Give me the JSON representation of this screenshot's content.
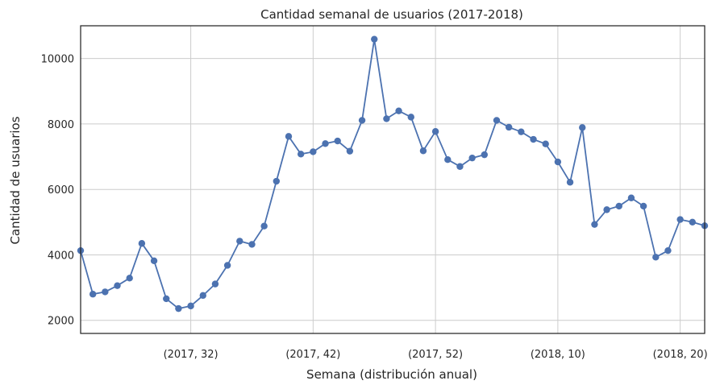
{
  "chart_data": {
    "type": "line",
    "title": "Cantidad semanal de usuarios (2017-2018)",
    "xlabel": "Semana (distribución anual)",
    "ylabel": "Cantidad de usuarios",
    "x_tick_labels": [
      "(2017, 32)",
      "(2017, 42)",
      "(2017, 52)",
      "(2018, 10)",
      "(2018, 20)"
    ],
    "y_ticks": [
      2000,
      4000,
      6000,
      8000,
      10000
    ],
    "ylim": [
      1600,
      11000
    ],
    "grid": true,
    "color": "#4c72b0",
    "x": [
      "(2017, 23)",
      "(2017, 24)",
      "(2017, 25)",
      "(2017, 26)",
      "(2017, 27)",
      "(2017, 28)",
      "(2017, 29)",
      "(2017, 30)",
      "(2017, 31)",
      "(2017, 32)",
      "(2017, 33)",
      "(2017, 34)",
      "(2017, 35)",
      "(2017, 36)",
      "(2017, 37)",
      "(2017, 38)",
      "(2017, 39)",
      "(2017, 40)",
      "(2017, 41)",
      "(2017, 42)",
      "(2017, 43)",
      "(2017, 44)",
      "(2017, 45)",
      "(2017, 46)",
      "(2017, 47)",
      "(2017, 48)",
      "(2017, 49)",
      "(2017, 50)",
      "(2017, 51)",
      "(2017, 52)",
      "(2018, 1)",
      "(2018, 2)",
      "(2018, 3)",
      "(2018, 4)",
      "(2018, 5)",
      "(2018, 6)",
      "(2018, 7)",
      "(2018, 8)",
      "(2018, 9)",
      "(2018, 10)",
      "(2018, 11)",
      "(2018, 12)",
      "(2018, 13)",
      "(2018, 14)",
      "(2018, 15)",
      "(2018, 16)",
      "(2018, 17)",
      "(2018, 18)",
      "(2018, 19)",
      "(2018, 20)",
      "(2018, 21)",
      "(2018, 22)"
    ],
    "values": [
      4130,
      2800,
      2870,
      3060,
      3290,
      4350,
      3820,
      2660,
      2360,
      2440,
      2760,
      3110,
      3680,
      4420,
      4320,
      4880,
      6250,
      7620,
      7080,
      7150,
      7400,
      7480,
      7170,
      8110,
      10590,
      8160,
      8400,
      8210,
      7180,
      7770,
      6910,
      6700,
      6960,
      7060,
      8110,
      7900,
      7760,
      7530,
      7390,
      6840,
      6220,
      7890,
      4930,
      5380,
      5490,
      5740,
      5490,
      3930,
      4130,
      5080,
      5000,
      4890
    ]
  }
}
